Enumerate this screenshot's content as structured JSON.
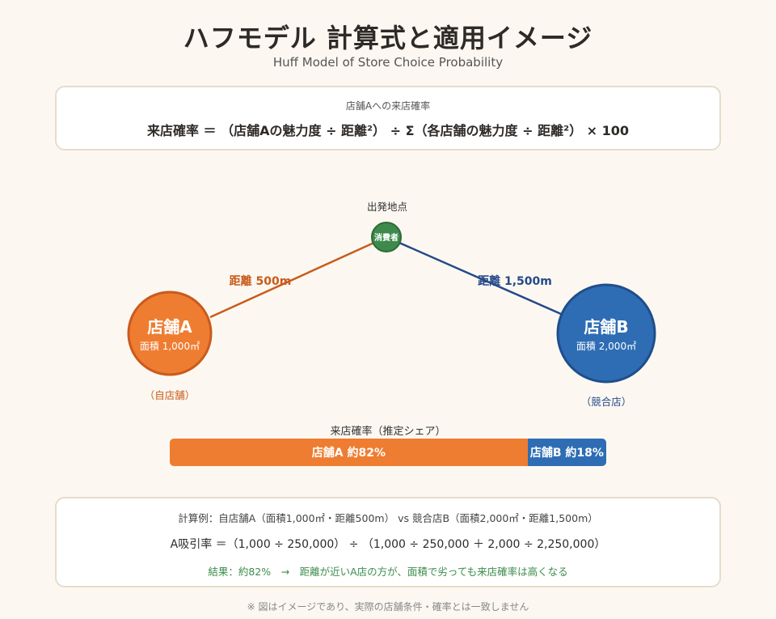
{
  "header": {
    "title": "ハフモデル 計算式と適用イメージ",
    "subtitle": "Huff Model of Store Choice Probability"
  },
  "formula": {
    "label": "店舗Aへの来店確率",
    "text": "来店確率 ＝ （店舗Aの魅力度 ÷ 距離²） ÷ Σ（各店舗の魅力度 ÷ 距離²） × 100"
  },
  "diagram": {
    "origin_label": "出発地点",
    "consumer_label": "消費者",
    "store_a": {
      "name": "店舗A",
      "area": "面積 1,000㎡",
      "role": "（自店舗）",
      "color": "#ee7d31"
    },
    "store_b": {
      "name": "店舗B",
      "area": "面積 2,000㎡",
      "role": "（競合店）",
      "color": "#2e6db4"
    },
    "distance_a": "距離 500m",
    "distance_b": "距離 1,500m",
    "consumer_color": "#3e8a4c"
  },
  "share": {
    "label": "来店確率（推定シェア）",
    "segments": [
      {
        "label": "店舗A 約82%",
        "value": 82,
        "color": "#ee7d31"
      },
      {
        "label": "店舗B 約18%",
        "value": 18,
        "color": "#2e6db4"
      }
    ]
  },
  "calculation": {
    "example": "計算例：自店舗A（面積1,000㎡・距離500m） vs 競合店B（面積2,000㎡・距離1,500m）",
    "equation": "A吸引率 ＝（1,000 ÷ 250,000） ÷ （1,000 ÷ 250,000 ＋ 2,000 ÷ 2,250,000）",
    "result": "結果：約82%　→　距離が近いA店の方が、面積で劣っても来店確率は高くなる"
  },
  "footnote": "※ 図はイメージであり、実際の店舗条件・確率とは一致しません"
}
